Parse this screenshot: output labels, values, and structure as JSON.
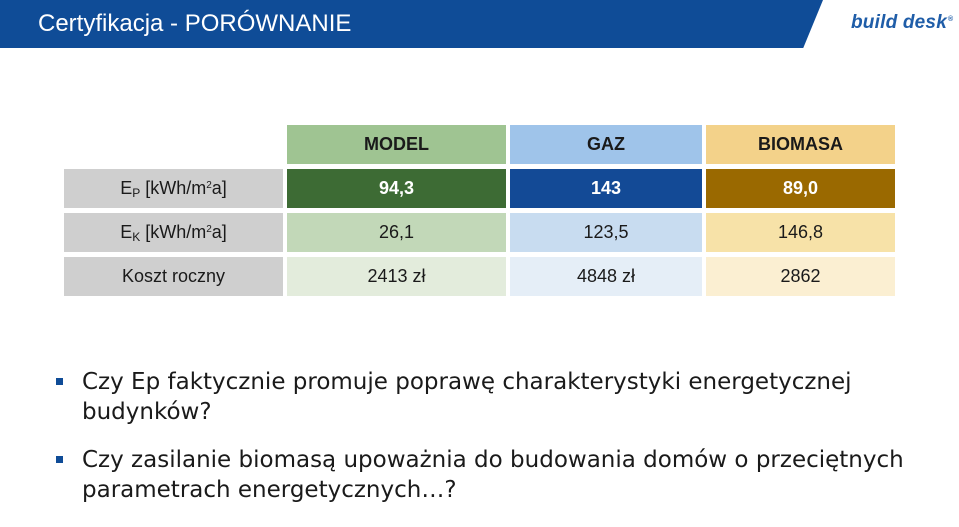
{
  "header": {
    "title": "Certyfikacja - PORÓWNANIE",
    "logo_text": "build desk",
    "logo_reg": "®"
  },
  "table": {
    "columns": [
      "MODEL",
      "GAZ",
      "BIOMASA"
    ],
    "rows": [
      {
        "label_main": "E",
        "label_sub": "P",
        "label_unit_pre": " [kWh/m",
        "label_unit_sup": "2",
        "label_unit_post": "a]",
        "values": [
          "94,3",
          "143",
          "89,0"
        ]
      },
      {
        "label_main": "E",
        "label_sub": "K",
        "label_unit_pre": " [kWh/m",
        "label_unit_sup": "2",
        "label_unit_post": "a]",
        "values": [
          "26,1",
          "123,5",
          "146,8"
        ]
      },
      {
        "label": "Koszt roczny",
        "values": [
          "2413 zł",
          "4848 zł",
          "2862"
        ]
      }
    ]
  },
  "bullets": [
    "Czy Ep faktycznie promuje poprawę charakterystyki energetycznej budynków?",
    "Czy zasilanie biomasą upoważnia do budowania domów o przeciętnych parametrach energetycznych…?"
  ],
  "colors": {
    "title_bar": "#0f4c97",
    "model_dark": "#3d6b34",
    "gaz_dark": "#134a96",
    "biomasa_dark": "#9a6900"
  }
}
